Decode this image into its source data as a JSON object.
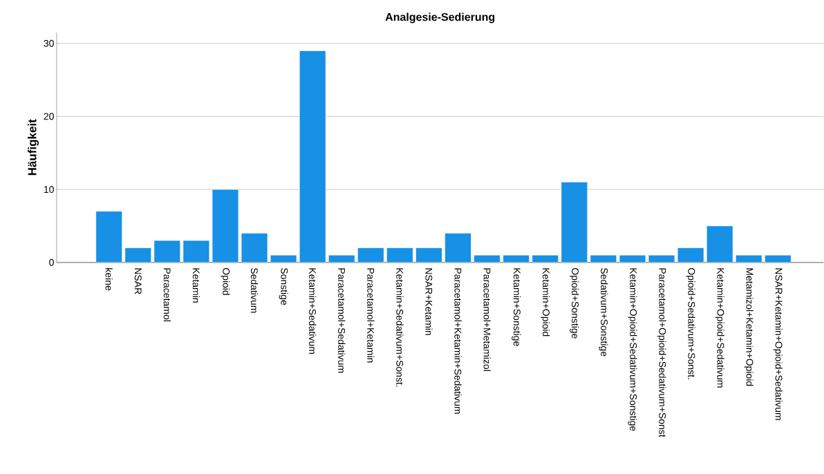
{
  "chart_data": {
    "type": "bar",
    "title": "Analgesie-Sedierung",
    "ylabel": "Häufigkeit",
    "categories": [
      "keine",
      "NSAR",
      "Paracetamol",
      "Ketamin",
      "Opioid",
      "Sedativum",
      "Sonstige",
      "Ketamin+Sedativum",
      "Paracetamol+Sedativum",
      "Paracetamol+Ketamin",
      "Ketamin+Sedativum+Sonst.",
      "NSAR+Ketamin",
      "Paracetamol+Ketamin+Sedativum",
      "Paracetamol+Metamizol",
      "Ketamin+Sonstige",
      "Ketamin+Opioid",
      "Opioid+Sonstige",
      "Sedativum+Sonstige",
      "Ketamin+Opioid+Sedativum+Sonstige",
      "Paracetamol+Opioid+Sedativum+Sonst",
      "Opioid+Sedativum+Sonst.",
      "Ketamin+Opioid+Sedativum",
      "Metamizol+Ketamin+Opioid",
      "NSAR+Ketamin+Opioid+Sedativum"
    ],
    "values": [
      7,
      2,
      3,
      3,
      10,
      4,
      1,
      29,
      1,
      2,
      2,
      2,
      4,
      1,
      1,
      1,
      11,
      1,
      1,
      1,
      2,
      5,
      1,
      1
    ],
    "color": "#1790e6",
    "ylim": [
      0,
      31.5
    ],
    "yticks": [
      0,
      10,
      20,
      30
    ],
    "grid": "y"
  }
}
